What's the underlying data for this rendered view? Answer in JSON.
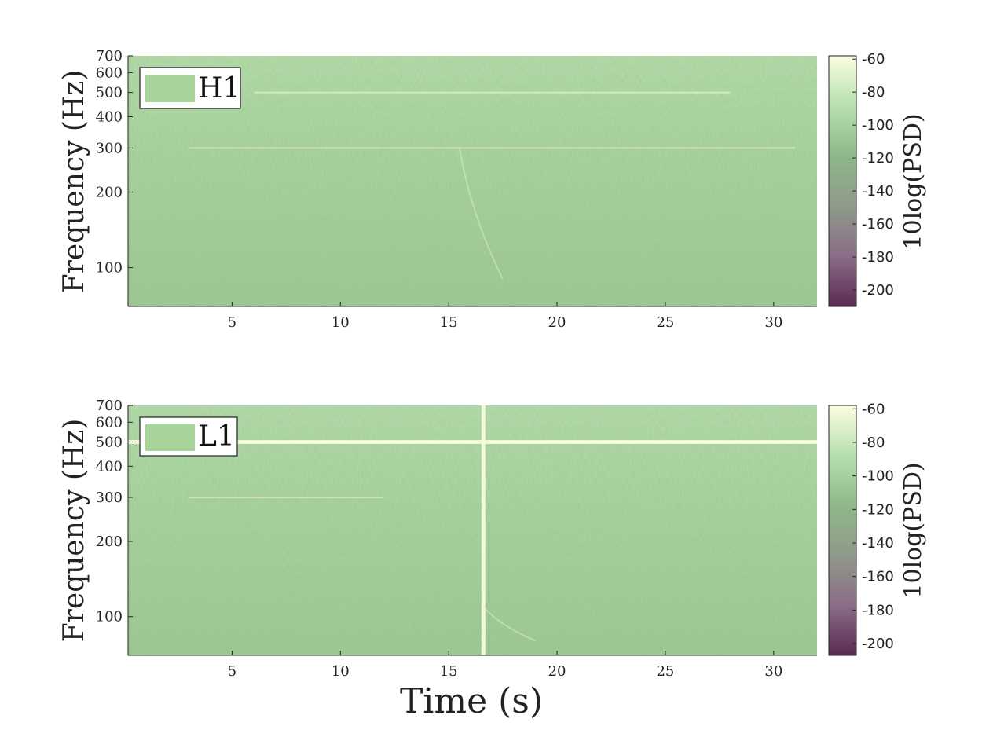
{
  "figure": {
    "xlabel": "Time (s)"
  },
  "colors": {
    "colormap": [
      "#5a2a52",
      "#8a6d86",
      "#8f9a8a",
      "#8fb88a",
      "#b7dfae",
      "#fbfde2"
    ],
    "plot_background": "#a6d49b"
  },
  "chart_data": [
    {
      "type": "heatmap",
      "legend": "H1",
      "ylabel": "Frequency (Hz)",
      "colorbar_label": "10log(PSD)",
      "y_scale": "log",
      "xlim": [
        0.2,
        32
      ],
      "ylim": [
        70,
        700
      ],
      "x_ticks": [
        5,
        10,
        15,
        20,
        25,
        30
      ],
      "y_ticks": [
        100,
        200,
        300,
        400,
        500,
        600,
        700
      ],
      "colorbar_range": [
        -210,
        -58
      ],
      "colorbar_ticks": [
        -60,
        -80,
        -100,
        -120,
        -140,
        -160,
        -180,
        -200
      ],
      "features": [
        {
          "kind": "horizontal_line",
          "frequency_hz": 300,
          "t_start": 3,
          "t_end": 31
        },
        {
          "kind": "horizontal_line",
          "frequency_hz": 500,
          "t_start": 6,
          "t_end": 28
        },
        {
          "kind": "chirp",
          "t_start": 15.5,
          "t_end": 17.5,
          "f_start": 300,
          "f_end": 90
        }
      ],
      "legend_location": "top-left"
    },
    {
      "type": "heatmap",
      "legend": "L1",
      "ylabel": "Frequency (Hz)",
      "colorbar_label": "10log(PSD)",
      "y_scale": "log",
      "xlim": [
        0.2,
        32
      ],
      "ylim": [
        70,
        700
      ],
      "x_ticks": [
        5,
        10,
        15,
        20,
        25,
        30
      ],
      "y_ticks": [
        100,
        200,
        300,
        400,
        500,
        600,
        700
      ],
      "colorbar_range": [
        -207,
        -58
      ],
      "colorbar_ticks": [
        -60,
        -80,
        -100,
        -120,
        -140,
        -160,
        -180,
        -200
      ],
      "features": [
        {
          "kind": "horizontal_line",
          "frequency_hz": 500,
          "t_start": 0.2,
          "t_end": 32
        },
        {
          "kind": "horizontal_line",
          "frequency_hz": 300,
          "t_start": 3,
          "t_end": 12
        },
        {
          "kind": "vertical_line",
          "time_s": 16.6,
          "f_start": 70,
          "f_end": 700
        },
        {
          "kind": "chirp",
          "t_start": 16.6,
          "t_end": 19,
          "f_start": 110,
          "f_end": 80
        }
      ],
      "legend_location": "top-left"
    }
  ]
}
